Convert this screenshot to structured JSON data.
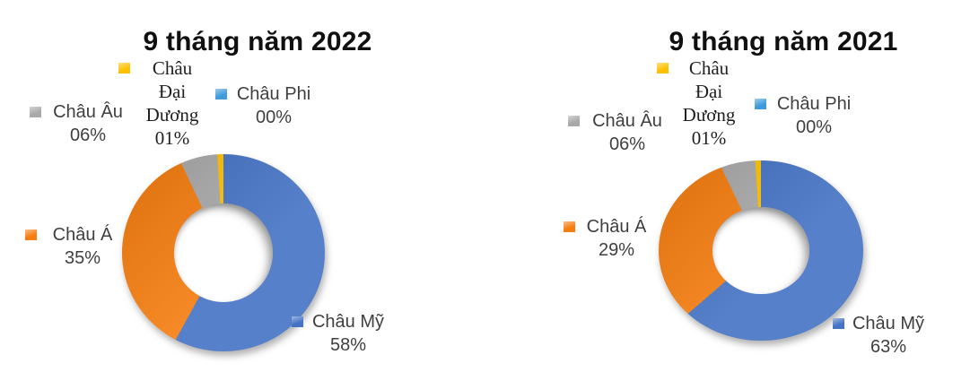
{
  "chart_data": [
    {
      "type": "donut",
      "title": "9 tháng năm 2022",
      "categories": [
        "Châu Mỹ",
        "Châu Á",
        "Châu Âu",
        "Châu Đại Dương",
        "Châu Phi"
      ],
      "values": [
        58,
        35,
        6,
        1,
        0
      ],
      "labels_display": [
        "58%",
        "35%",
        "06%",
        "01%",
        "00%"
      ],
      "colors": [
        "#4472C4",
        "#F67D0F",
        "#A9A9A9",
        "#FFC000",
        "#3F9BDB"
      ],
      "start_angle_deg": 0,
      "direction": "clockwise",
      "legend_position": "data labels around donut"
    },
    {
      "type": "donut",
      "title": "9 tháng năm 2021",
      "categories": [
        "Châu Mỹ",
        "Châu Á",
        "Châu Âu",
        "Châu Đại Dương",
        "Châu Phi"
      ],
      "values": [
        63,
        29,
        6,
        1,
        0
      ],
      "labels_display": [
        "63%",
        "29%",
        "06%",
        "01%",
        "00%"
      ],
      "colors": [
        "#4472C4",
        "#F67D0F",
        "#A9A9A9",
        "#FFC000",
        "#3F9BDB"
      ],
      "start_angle_deg": 0,
      "direction": "clockwise",
      "legend_position": "data labels around donut"
    }
  ]
}
